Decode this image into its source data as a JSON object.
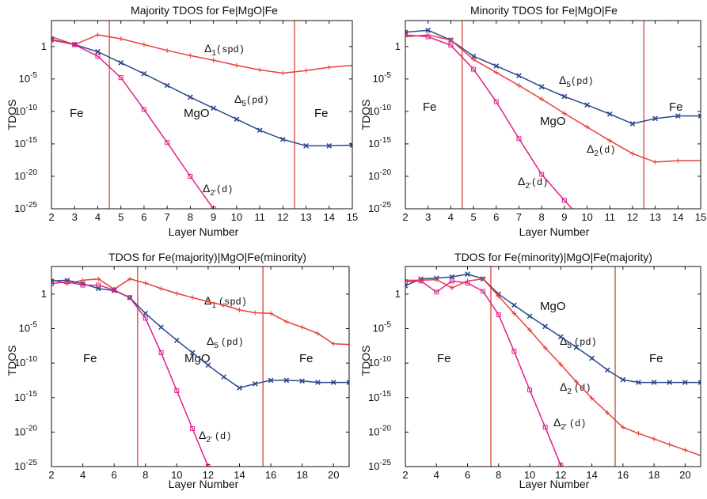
{
  "figure": {
    "panels": [
      {
        "title": "Majority TDOS for Fe|MgO|Fe",
        "xlabel": "Layer Number",
        "ylabel": "TDOS"
      },
      {
        "title": "Minority TDOS for Fe|MgO|Fe",
        "xlabel": "Layer Number",
        "ylabel": "TDOS"
      },
      {
        "title": "TDOS for Fe(majority)|MgO|Fe(minority)",
        "xlabel": "Layer Number",
        "ylabel": "TDOS"
      },
      {
        "title": "TDOS for Fe(minority)|MgO|Fe(majority)",
        "xlabel": "Layer Number",
        "ylabel": "TDOS"
      }
    ]
  },
  "chart_data": [
    {
      "type": "line",
      "title": "Majority TDOS for Fe|MgO|Fe",
      "xlabel": "Layer Number",
      "ylabel": "TDOS",
      "xlim": [
        2,
        15
      ],
      "ylim_log10": [
        -25,
        4
      ],
      "y_scale": "log",
      "xticks": [
        "2",
        "3",
        "4",
        "5",
        "6",
        "7",
        "8",
        "9",
        "10",
        "11",
        "12",
        "13",
        "14",
        "15"
      ],
      "yticks": [
        {
          "base": "10",
          "exp": "-25"
        },
        {
          "base": "10",
          "exp": "-20"
        },
        {
          "base": "10",
          "exp": "-15"
        },
        {
          "base": "10",
          "exp": "-10"
        },
        {
          "base": "10",
          "exp": "-5"
        },
        {
          "base": "1",
          "exp": ""
        }
      ],
      "ytick_values_log10": [
        -25,
        -20,
        -15,
        -10,
        -5,
        0
      ],
      "vlines": [
        4.5,
        12.5
      ],
      "series": [
        {
          "name": "Δ1(spd)",
          "color": "#e8403a",
          "marker": "plus",
          "x": [
            2,
            3,
            4,
            5,
            6,
            7,
            8,
            9,
            10,
            11,
            12,
            13,
            14,
            15
          ],
          "y_log10": [
            1.5,
            0.3,
            1.8,
            1.2,
            0.3,
            -0.6,
            -1.4,
            -2.1,
            -2.9,
            -3.6,
            -4.1,
            -3.7,
            -3.2,
            -2.9
          ]
        },
        {
          "name": "Δ5(pd)",
          "color": "#2b4a8f",
          "marker": "x",
          "x": [
            2,
            3,
            4,
            5,
            6,
            7,
            8,
            9,
            10,
            11,
            12,
            13,
            14,
            15
          ],
          "y_log10": [
            1.1,
            0.3,
            -0.8,
            -2.5,
            -4.2,
            -6.0,
            -7.8,
            -9.5,
            -11.2,
            -12.9,
            -14.3,
            -15.3,
            -15.3,
            -15.2
          ]
        },
        {
          "name": "Δ2'(d)",
          "color": "#e0208a",
          "marker": "square",
          "x": [
            2,
            3,
            4,
            5,
            6,
            7,
            8,
            9
          ],
          "y_log10": [
            1.0,
            0.3,
            -1.5,
            -4.8,
            -9.7,
            -14.8,
            -20.0,
            -25.0
          ]
        }
      ],
      "annotations": [
        "Fe",
        "MgO",
        "Fe",
        "Δ1(spd)",
        "Δ5(pd)",
        "Δ2'(d)"
      ]
    },
    {
      "type": "line",
      "title": "Minority TDOS for Fe|MgO|Fe",
      "xlabel": "Layer Number",
      "ylabel": "TDOS",
      "xlim": [
        2,
        15
      ],
      "ylim_log10": [
        -25,
        4
      ],
      "y_scale": "log",
      "xticks": [
        "2",
        "3",
        "4",
        "5",
        "6",
        "7",
        "8",
        "9",
        "10",
        "11",
        "12",
        "13",
        "14",
        "15"
      ],
      "yticks": [
        {
          "base": "10",
          "exp": "-25"
        },
        {
          "base": "10",
          "exp": "-20"
        },
        {
          "base": "10",
          "exp": "-15"
        },
        {
          "base": "10",
          "exp": "-10"
        },
        {
          "base": "10",
          "exp": "-5"
        },
        {
          "base": "1",
          "exp": ""
        }
      ],
      "ytick_values_log10": [
        -25,
        -20,
        -15,
        -10,
        -5,
        0
      ],
      "vlines": [
        4.5,
        12.5
      ],
      "series": [
        {
          "name": "Δ5(pd)",
          "color": "#2b4a8f",
          "marker": "x",
          "x": [
            2,
            3,
            4,
            5,
            6,
            7,
            8,
            9,
            10,
            11,
            12,
            13,
            14,
            15
          ],
          "y_log10": [
            2.2,
            2.5,
            1.0,
            -1.5,
            -3.0,
            -4.5,
            -6.2,
            -7.7,
            -9.0,
            -10.4,
            -11.9,
            -11.1,
            -10.7,
            -10.7
          ]
        },
        {
          "name": "Δ2(d)",
          "color": "#e8403a",
          "marker": "plus",
          "x": [
            2,
            3,
            4,
            5,
            6,
            7,
            8,
            9,
            10,
            11,
            12,
            13,
            14,
            15
          ],
          "y_log10": [
            1.5,
            1.8,
            1.0,
            -2.0,
            -4.0,
            -6.0,
            -8.1,
            -10.3,
            -12.4,
            -14.5,
            -16.5,
            -17.8,
            -17.6,
            -17.6
          ]
        },
        {
          "name": "Δ2'(d)",
          "color": "#e0208a",
          "marker": "square",
          "x": [
            2,
            3,
            4,
            5,
            6,
            7,
            8,
            9,
            10
          ],
          "y_log10": [
            1.8,
            1.5,
            0.2,
            -3.5,
            -8.5,
            -14.2,
            -19.7,
            -23.7,
            -27.5
          ]
        }
      ],
      "annotations": [
        "Fe",
        "MgO",
        "Fe",
        "Δ5(pd)",
        "Δ2(d)",
        "Δ2'(d)"
      ]
    },
    {
      "type": "line",
      "title": "TDOS for Fe(majority)|MgO|Fe(minority)",
      "xlabel": "Layer Number",
      "ylabel": "TDOS",
      "xlim": [
        2,
        21
      ],
      "ylim_log10": [
        -25,
        4
      ],
      "y_scale": "log",
      "xticks": [
        "2",
        "4",
        "6",
        "8",
        "10",
        "12",
        "14",
        "16",
        "18",
        "20"
      ],
      "yticks": [
        {
          "base": "10",
          "exp": "-25"
        },
        {
          "base": "10",
          "exp": "-20"
        },
        {
          "base": "10",
          "exp": "-15"
        },
        {
          "base": "10",
          "exp": "-10"
        },
        {
          "base": "10",
          "exp": "-5"
        },
        {
          "base": "1",
          "exp": ""
        }
      ],
      "ytick_values_log10": [
        -25,
        -20,
        -15,
        -10,
        -5,
        0
      ],
      "vlines": [
        7.5,
        15.5
      ],
      "series": [
        {
          "name": "Δ1(spd)",
          "color": "#e8403a",
          "marker": "plus",
          "x": [
            2,
            3,
            4,
            5,
            6,
            7,
            8,
            9,
            10,
            11,
            12,
            13,
            14,
            15,
            16,
            17,
            18,
            19,
            20,
            21
          ],
          "y_log10": [
            2.1,
            1.5,
            2.0,
            2.2,
            0.7,
            2.2,
            1.6,
            0.8,
            0.1,
            -0.5,
            -1.1,
            -1.6,
            -2.3,
            -2.7,
            -2.8,
            -4.0,
            -4.8,
            -5.7,
            -7.2,
            -7.3
          ]
        },
        {
          "name": "Δ5(pd)",
          "color": "#2b4a8f",
          "marker": "x",
          "x": [
            2,
            3,
            4,
            5,
            6,
            7,
            8,
            9,
            10,
            11,
            12,
            13,
            14,
            15,
            16,
            17,
            18,
            19,
            20,
            21
          ],
          "y_log10": [
            1.9,
            2.0,
            1.5,
            0.8,
            0.5,
            -0.5,
            -2.8,
            -4.8,
            -6.7,
            -8.5,
            -10.3,
            -12.0,
            -13.6,
            -13.0,
            -12.5,
            -12.5,
            -12.6,
            -12.8,
            -12.8,
            -12.8
          ]
        },
        {
          "name": "Δ2'(d)",
          "color": "#e0208a",
          "marker": "square",
          "x": [
            2,
            3,
            4,
            5,
            6,
            7,
            8,
            9,
            10,
            11,
            12
          ],
          "y_log10": [
            1.5,
            1.8,
            1.3,
            1.3,
            0.6,
            -0.5,
            -3.5,
            -8.5,
            -14.0,
            -19.5,
            -25.0
          ]
        }
      ],
      "annotations": [
        "Fe",
        "MgO",
        "Fe",
        "Δ1 (spd)",
        "Δ5 (pd)",
        "Δ2' (d)"
      ]
    },
    {
      "type": "line",
      "title": "TDOS for Fe(minority)|MgO|Fe(majority)",
      "xlabel": "Layer Number",
      "ylabel": "TDOS",
      "xlim": [
        2,
        21
      ],
      "ylim_log10": [
        -25,
        4
      ],
      "y_scale": "log",
      "xticks": [
        "2",
        "4",
        "6",
        "8",
        "10",
        "12",
        "14",
        "16",
        "18",
        "20"
      ],
      "yticks": [
        {
          "base": "10",
          "exp": "-25"
        },
        {
          "base": "10",
          "exp": "-20"
        },
        {
          "base": "10",
          "exp": "-15"
        },
        {
          "base": "10",
          "exp": "-10"
        },
        {
          "base": "10",
          "exp": "-5"
        },
        {
          "base": "1",
          "exp": ""
        }
      ],
      "ytick_values_log10": [
        -25,
        -20,
        -15,
        -10,
        -5,
        0
      ],
      "vlines": [
        7.5,
        15.5
      ],
      "series": [
        {
          "name": "Δ5(pd)",
          "color": "#2b4a8f",
          "marker": "x",
          "x": [
            2,
            3,
            4,
            5,
            6,
            7,
            8,
            9,
            10,
            11,
            12,
            13,
            14,
            15,
            16,
            17,
            18,
            19,
            20,
            21
          ],
          "y_log10": [
            1.2,
            2.2,
            2.3,
            2.5,
            2.9,
            2.2,
            0.0,
            -1.6,
            -3.2,
            -4.7,
            -6.2,
            -7.7,
            -9.3,
            -11.0,
            -12.4,
            -12.8,
            -12.8,
            -12.8,
            -12.8,
            -12.8
          ]
        },
        {
          "name": "Δ2(d)",
          "color": "#e8403a",
          "marker": "plus",
          "x": [
            2,
            3,
            4,
            5,
            6,
            7,
            8,
            9,
            10,
            11,
            12,
            13,
            14,
            15,
            16,
            17,
            18,
            19,
            20,
            21
          ],
          "y_log10": [
            2.0,
            2.0,
            2.1,
            0.9,
            1.9,
            2.2,
            -0.3,
            -2.8,
            -5.2,
            -7.8,
            -10.2,
            -12.7,
            -15.1,
            -17.2,
            -19.3,
            -20.2,
            -21.0,
            -21.8,
            -22.6,
            -23.4
          ]
        },
        {
          "name": "Δ2'(d)",
          "color": "#e0208a",
          "marker": "square",
          "x": [
            2,
            3,
            4,
            5,
            6,
            7,
            8,
            9,
            10,
            11,
            12,
            13
          ],
          "y_log10": [
            1.8,
            1.9,
            0.3,
            1.9,
            1.6,
            0.4,
            -3.0,
            -8.3,
            -13.9,
            -19.3,
            -24.8,
            -28.0
          ]
        }
      ],
      "annotations": [
        "Fe",
        "MgO",
        "Fe",
        "Δ5 (pd)",
        "Δ2 (d)",
        "Δ2' (d)"
      ]
    }
  ],
  "labels": {
    "p0": {
      "fe_left": "Fe",
      "mgo": "MgO",
      "fe_right": "Fe",
      "s1": "Δ",
      "s1sub": "1",
      "s1p": "(spd)",
      "s2": "Δ",
      "s2sub": "5",
      "s2p": "(pd)",
      "s3": "Δ",
      "s3sub": "2'",
      "s3p": "(d)"
    },
    "p1": {
      "fe_left": "Fe",
      "mgo": "MgO",
      "fe_right": "Fe",
      "s1": "Δ",
      "s1sub": "5",
      "s1p": "(pd)",
      "s2": "Δ",
      "s2sub": "2",
      "s2p": "(d)",
      "s3": "Δ",
      "s3sub": "2'",
      "s3p": "(d)"
    },
    "p2": {
      "fe_left": "Fe",
      "mgo": "MgO",
      "fe_right": "Fe",
      "s1": "Δ",
      "s1sub": "1",
      "s1p": "(spd)",
      "s2": "Δ",
      "s2sub": "5",
      "s2p": "(pd)",
      "s3": "Δ",
      "s3sub": "2'",
      "s3p": "(d)"
    },
    "p3": {
      "fe_left": "Fe",
      "mgo": "MgO",
      "fe_right": "Fe",
      "s1": "Δ",
      "s1sub": "5",
      "s1p": "(pd)",
      "s2": "Δ",
      "s2sub": "2",
      "s2p": "(d)",
      "s3": "Δ",
      "s3sub": "2'",
      "s3p": "(d)"
    }
  }
}
